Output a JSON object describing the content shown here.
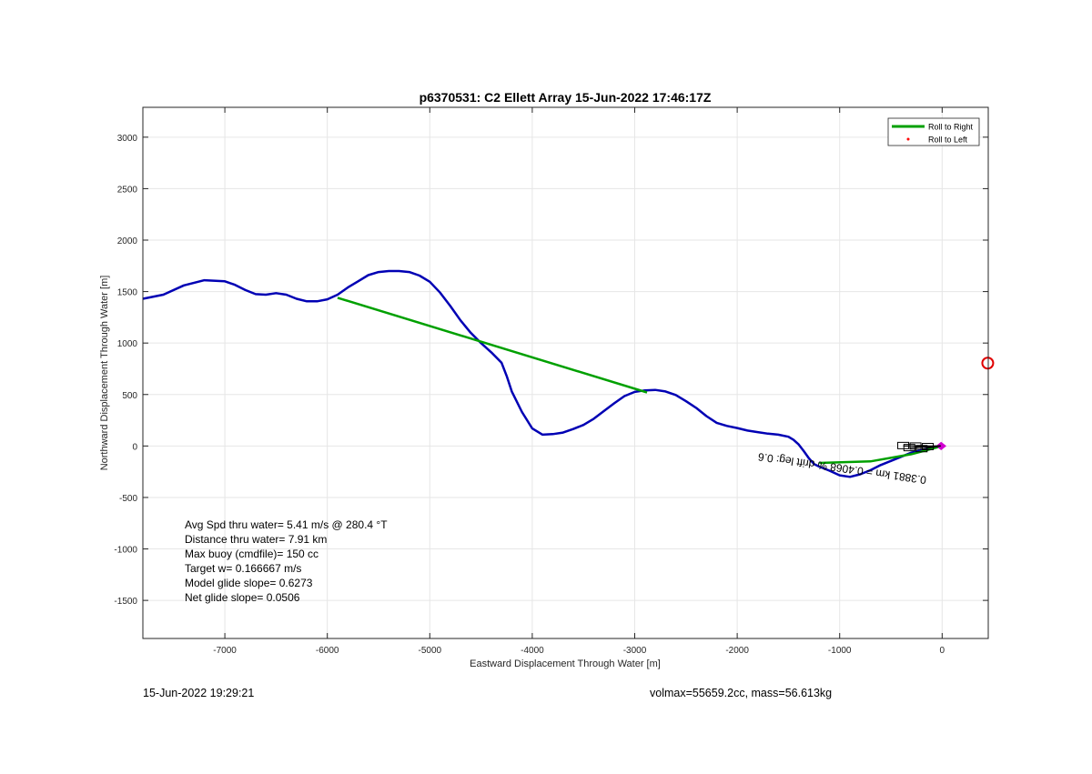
{
  "chart_data": {
    "type": "line",
    "title": "p6370531: C2 Ellett Array 15-Jun-2022 17:46:17Z",
    "xlabel": "Eastward Displacement Through Water [m]",
    "ylabel": "Northward Displacement Through Water [m]",
    "xlim": [
      -7800,
      450
    ],
    "ylim": [
      -1870,
      3290
    ],
    "xticks": [
      -7000,
      -6000,
      -5000,
      -4000,
      -3000,
      -2000,
      -1000,
      0
    ],
    "yticks": [
      -1500,
      -1000,
      -500,
      0,
      500,
      1000,
      1500,
      2000,
      2500,
      3000
    ],
    "grid": true,
    "legend": {
      "placement": "top-right",
      "entries": [
        {
          "label": "Roll to Right",
          "color": "#00a000",
          "marker": "line"
        },
        {
          "label": "Roll to Left",
          "color": "#ff0000",
          "marker": "dot"
        }
      ]
    },
    "series": [
      {
        "color": "#0000b4",
        "x": [
          -7800,
          -7600,
          -7400,
          -7200,
          -7000,
          -6900,
          -6800,
          -6700,
          -6600,
          -6500,
          -6400,
          -6300,
          -6200,
          -6100,
          -6000,
          -5900,
          -5800,
          -5700,
          -5600,
          -5500,
          -5400,
          -5300,
          -5200,
          -5100,
          -5000,
          -4900,
          -4800,
          -4700,
          -4600,
          -4500,
          -4400,
          -4300,
          -4250,
          -4200,
          -4100,
          -4000,
          -3900,
          -3800,
          -3700,
          -3600,
          -3500,
          -3400,
          -3300,
          -3200,
          -3100,
          -3000,
          -2900,
          -2800,
          -2700,
          -2600,
          -2500,
          -2400,
          -2300,
          -2200,
          -2100,
          -2000,
          -1900,
          -1800,
          -1700,
          -1600,
          -1500,
          -1450,
          -1400,
          -1350,
          -1300,
          -1250,
          -1200,
          -1100,
          -1000,
          -900,
          -800,
          -700,
          -600,
          -500,
          -400,
          -300,
          -200,
          -100,
          0
        ],
        "y": [
          1430,
          1470,
          1560,
          1610,
          1600,
          1565,
          1515,
          1475,
          1470,
          1485,
          1470,
          1430,
          1405,
          1405,
          1425,
          1470,
          1540,
          1600,
          1660,
          1690,
          1700,
          1700,
          1690,
          1655,
          1595,
          1490,
          1360,
          1220,
          1100,
          1000,
          910,
          810,
          680,
          530,
          330,
          170,
          110,
          115,
          130,
          165,
          205,
          265,
          340,
          415,
          485,
          525,
          540,
          545,
          530,
          495,
          435,
          370,
          290,
          225,
          195,
          175,
          150,
          135,
          120,
          110,
          90,
          60,
          15,
          -50,
          -120,
          -175,
          -200,
          -240,
          -285,
          -300,
          -275,
          -235,
          -185,
          -145,
          -105,
          -65,
          -40,
          -10,
          0
        ]
      },
      {
        "name": "Roll to Right",
        "color": "#00a000",
        "segments": [
          {
            "x": [
              -5900,
              -2880
            ],
            "y": [
              1440,
              520
            ]
          },
          {
            "x": [
              -1200,
              -700,
              -300,
              0
            ],
            "y": [
              -165,
              -150,
              -80,
              0
            ]
          }
        ]
      }
    ],
    "overlays": [
      {
        "type": "marker-circle",
        "color": "#e00000",
        "x": 445,
        "y": 805
      },
      {
        "type": "marker-diamond",
        "color": "#d000d0",
        "x": -10,
        "y": 0
      },
      {
        "type": "heading-arrows",
        "color": "#000000",
        "x": [
          -380,
          -320,
          -260,
          -200,
          -140
        ],
        "y": [
          0,
          -20,
          -5,
          -30,
          -10
        ]
      }
    ],
    "annotations": [
      {
        "id": "rotated",
        "text": "0.3881 km = 0.4068 % drift leg: 0.6",
        "x": -1000,
        "y": -230,
        "rotate": 188
      }
    ],
    "stats": [
      "Avg Spd thru water=  5.41 m/s @ 280.4 °T",
      "Distance thru water=  7.91 km",
      "Max buoy (cmdfile)= 150 cc",
      "Target w= 0.166667 m/s",
      "Model glide slope= 0.6273",
      "Net glide slope= 0.0506"
    ]
  },
  "footer": {
    "timestamp": "15-Jun-2022 19:29:21",
    "vol_mass": "volmax=55659.2cc, mass=56.613kg"
  }
}
